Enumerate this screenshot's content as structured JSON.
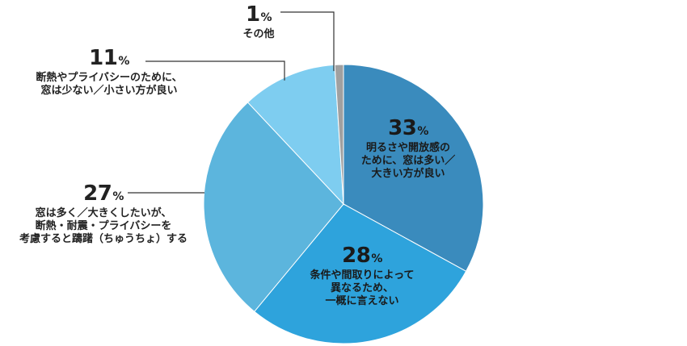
{
  "chart_data": {
    "type": "pie",
    "unit": "%",
    "slices": [
      {
        "value": 33,
        "label": "明るさや開放感の\nために、窓は多い／\n大きい方が良い",
        "color": "#3a8bbd"
      },
      {
        "value": 28,
        "label": "条件や間取りによって\n異なるため、\n一概に言えない",
        "color": "#2ea3dc"
      },
      {
        "value": 27,
        "label": "窓は多く／大きくしたいが、\n断熱・耐震・プライバシーを\n考慮すると躊躇（ちゅうちょ）する",
        "color": "#5cb5dd"
      },
      {
        "value": 11,
        "label": "断熱やプライバシーのために、\n窓は少ない／小さい方が良い",
        "color": "#7ecdf0"
      },
      {
        "value": 1,
        "label": "その他",
        "color": "#a0a0a0"
      }
    ]
  }
}
